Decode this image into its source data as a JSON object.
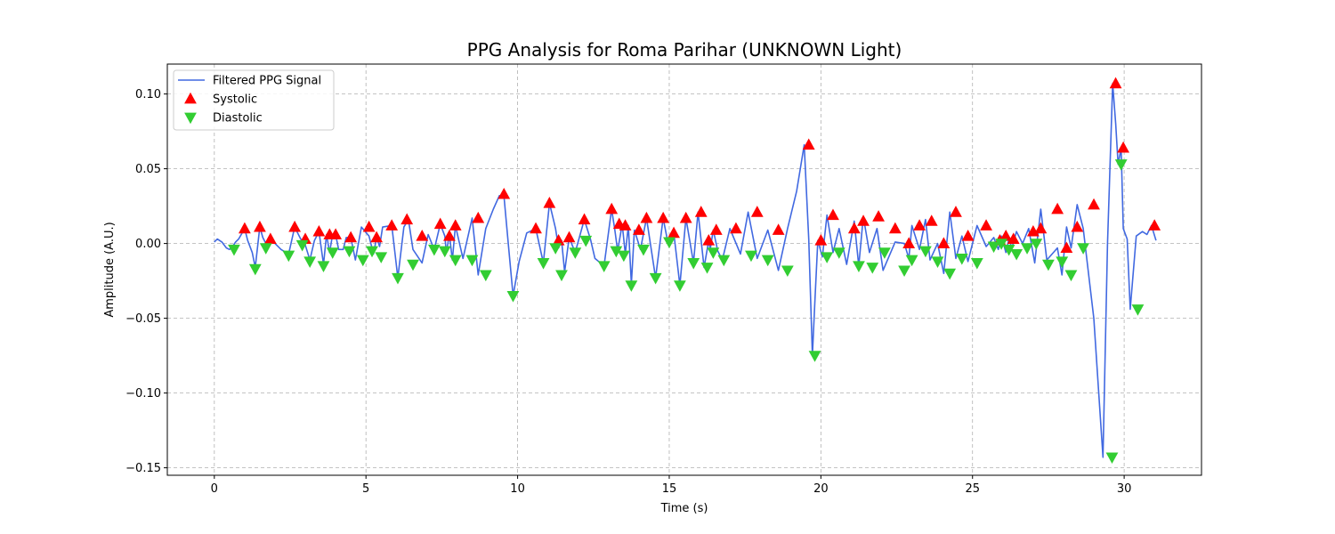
{
  "chart_data": {
    "type": "line",
    "title": "PPG Analysis for Roma Parihar (UNKNOWN Light)",
    "xlabel": "Time (s)",
    "ylabel": "Amplitude (A.U.)",
    "xlim": [
      -1.55,
      32.55
    ],
    "ylim": [
      -0.155,
      0.12
    ],
    "xticks": [
      0,
      5,
      10,
      15,
      20,
      25,
      30
    ],
    "xtick_labels": [
      "0",
      "5",
      "10",
      "15",
      "20",
      "25",
      "30"
    ],
    "yticks": [
      -0.15,
      -0.1,
      -0.05,
      0.0,
      0.05,
      0.1
    ],
    "ytick_labels": [
      "−0.15",
      "−0.10",
      "−0.05",
      "0.00",
      "0.05",
      "0.10"
    ],
    "grid": true,
    "legend_position": "top-left",
    "colors": {
      "signal": "#4169e1",
      "systolic": "#ff0000",
      "diastolic": "#32cd32"
    },
    "series": [
      {
        "name": "Filtered PPG Signal",
        "kind": "line",
        "x": [
          0.0,
          0.1,
          0.25,
          0.4,
          0.5,
          0.6,
          0.7,
          0.8,
          1.0,
          1.1,
          1.25,
          1.35,
          1.5,
          1.6,
          1.75,
          1.85,
          2.0,
          2.2,
          2.45,
          2.65,
          2.85,
          3.0,
          3.15,
          3.3,
          3.45,
          3.6,
          3.7,
          3.8,
          3.9,
          4.0,
          4.1,
          4.25,
          4.35,
          4.5,
          4.65,
          4.85,
          5.1,
          5.25,
          5.35,
          5.45,
          5.55,
          5.85,
          6.05,
          6.25,
          6.4,
          6.55,
          6.85,
          7.05,
          7.25,
          7.45,
          7.6,
          7.65,
          7.75,
          7.85,
          7.95,
          8.2,
          8.5,
          8.7,
          8.95,
          9.2,
          9.4,
          9.55,
          9.7,
          9.85,
          10.05,
          10.3,
          10.6,
          10.85,
          11.05,
          11.25,
          11.35,
          11.45,
          11.55,
          11.7,
          11.9,
          12.2,
          12.4,
          12.55,
          12.85,
          13.1,
          13.2,
          13.3,
          13.45,
          13.55,
          13.65,
          13.75,
          13.85,
          14.05,
          14.25,
          14.55,
          14.8,
          14.95,
          15.15,
          15.35,
          15.55,
          15.8,
          15.95,
          16.15,
          16.3,
          16.35,
          16.45,
          16.6,
          16.75,
          17.0,
          17.35,
          17.6,
          17.9,
          18.25,
          18.6,
          18.9,
          19.2,
          19.45,
          19.6,
          19.72,
          19.8,
          19.9,
          20.05,
          20.2,
          20.4,
          20.6,
          20.85,
          21.1,
          21.25,
          21.4,
          21.6,
          21.85,
          22.05,
          22.45,
          22.75,
          22.9,
          23.0,
          23.25,
          23.45,
          23.6,
          23.85,
          24.05,
          24.25,
          24.45,
          24.65,
          24.85,
          25.15,
          25.45,
          25.7,
          25.85,
          25.95,
          26.1,
          26.2,
          26.3,
          26.45,
          26.65,
          26.85,
          27.05,
          27.25,
          27.45,
          27.8,
          27.95,
          28.1,
          28.25,
          28.45,
          28.65,
          29.0,
          29.3,
          29.45,
          29.62,
          29.72,
          29.8,
          29.9,
          29.97,
          30.1,
          30.2,
          30.4,
          30.6,
          30.75,
          30.9,
          31.05
        ],
        "y": [
          0.001,
          0.003,
          0.001,
          -0.003,
          -0.004,
          -0.002,
          0.001,
          0.003,
          0.01,
          0.002,
          -0.006,
          -0.016,
          0.011,
          0.004,
          -0.002,
          0.002,
          0.0,
          -0.004,
          -0.007,
          0.011,
          0.003,
          -0.001,
          -0.011,
          0.002,
          0.008,
          -0.014,
          0.006,
          -0.006,
          0.006,
          0.006,
          -0.004,
          -0.004,
          0.004,
          0.004,
          -0.011,
          0.011,
          0.005,
          -0.007,
          0.004,
          -0.002,
          0.011,
          0.012,
          -0.023,
          0.011,
          0.016,
          -0.004,
          -0.013,
          0.006,
          -0.004,
          0.013,
          0.005,
          -0.006,
          0.006,
          -0.011,
          0.012,
          -0.01,
          0.017,
          -0.021,
          0.01,
          0.023,
          0.032,
          0.032,
          -0.002,
          -0.035,
          -0.012,
          0.007,
          0.01,
          -0.013,
          0.027,
          0.01,
          -0.003,
          0.002,
          -0.019,
          0.004,
          -0.006,
          0.016,
          0.003,
          -0.01,
          -0.015,
          0.023,
          0.01,
          -0.005,
          0.013,
          -0.007,
          0.012,
          -0.027,
          0.009,
          -0.004,
          0.017,
          -0.023,
          0.017,
          0.001,
          0.007,
          -0.028,
          0.017,
          -0.013,
          0.021,
          -0.016,
          0.002,
          -0.004,
          0.009,
          -0.005,
          -0.011,
          0.01,
          -0.007,
          0.021,
          -0.01,
          0.009,
          -0.018,
          0.01,
          0.035,
          0.066,
          0.003,
          -0.075,
          -0.04,
          0.002,
          -0.009,
          0.019,
          -0.006,
          0.01,
          -0.014,
          0.015,
          -0.015,
          0.018,
          -0.006,
          0.01,
          -0.018,
          0.001,
          0.0,
          -0.01,
          0.012,
          -0.004,
          0.016,
          -0.011,
          0.0,
          -0.02,
          0.021,
          -0.01,
          0.005,
          -0.012,
          0.012,
          -0.002,
          0.004,
          -0.004,
          0.005,
          -0.006,
          0.003,
          -0.003,
          0.008,
          0.0,
          0.01,
          -0.013,
          0.023,
          -0.011,
          -0.003,
          -0.021,
          0.011,
          -0.003,
          0.026,
          0.01,
          -0.05,
          -0.143,
          0.0,
          0.107,
          0.08,
          0.053,
          0.064,
          0.01,
          0.003,
          -0.044,
          0.005,
          0.008,
          0.006,
          0.012,
          0.002
        ]
      },
      {
        "name": "Systolic",
        "kind": "marker-up",
        "x": [
          1.0,
          1.5,
          1.85,
          2.65,
          3.0,
          3.45,
          3.8,
          4.0,
          4.5,
          5.1,
          5.35,
          5.85,
          6.35,
          6.85,
          7.45,
          7.75,
          7.95,
          8.7,
          9.55,
          10.6,
          11.05,
          11.35,
          11.7,
          12.2,
          13.1,
          13.35,
          13.55,
          14.0,
          14.25,
          14.8,
          15.15,
          15.55,
          16.05,
          16.3,
          16.55,
          17.2,
          17.9,
          18.6,
          19.6,
          20.0,
          20.4,
          21.1,
          21.4,
          21.9,
          22.45,
          22.9,
          23.25,
          23.65,
          24.05,
          24.45,
          24.85,
          25.45,
          25.9,
          26.1,
          26.35,
          27.0,
          27.25,
          27.8,
          28.1,
          28.45,
          29.0,
          29.72,
          29.97,
          31.0
        ],
        "y": [
          0.01,
          0.011,
          0.003,
          0.011,
          0.003,
          0.008,
          0.006,
          0.006,
          0.004,
          0.011,
          0.004,
          0.012,
          0.016,
          0.005,
          0.013,
          0.005,
          0.012,
          0.017,
          0.033,
          0.01,
          0.027,
          0.002,
          0.004,
          0.016,
          0.023,
          0.013,
          0.012,
          0.009,
          0.017,
          0.017,
          0.007,
          0.017,
          0.021,
          0.002,
          0.009,
          0.01,
          0.021,
          0.009,
          0.066,
          0.002,
          0.019,
          0.01,
          0.015,
          0.018,
          0.01,
          0.0,
          0.012,
          0.015,
          0.0,
          0.021,
          0.005,
          0.012,
          0.002,
          0.005,
          0.003,
          0.008,
          0.01,
          0.023,
          -0.003,
          0.011,
          0.026,
          0.107,
          0.064,
          0.012
        ]
      },
      {
        "name": "Diastolic",
        "kind": "marker-down",
        "x": [
          0.65,
          1.35,
          1.7,
          2.45,
          2.9,
          3.15,
          3.6,
          3.9,
          4.45,
          4.9,
          5.2,
          5.5,
          6.05,
          6.55,
          7.25,
          7.6,
          7.95,
          8.5,
          8.95,
          9.85,
          10.85,
          11.25,
          11.45,
          11.9,
          12.25,
          12.85,
          13.25,
          13.5,
          13.75,
          14.15,
          14.55,
          15.0,
          15.35,
          15.8,
          16.25,
          16.45,
          16.8,
          17.7,
          18.25,
          18.9,
          19.8,
          20.2,
          20.6,
          21.25,
          21.7,
          22.1,
          22.75,
          23.0,
          23.45,
          23.85,
          24.25,
          24.65,
          25.15,
          25.7,
          25.95,
          26.2,
          26.45,
          26.8,
          27.1,
          27.5,
          27.95,
          28.25,
          28.65,
          29.6,
          29.9,
          30.45
        ],
        "y": [
          -0.004,
          -0.017,
          -0.003,
          -0.008,
          -0.001,
          -0.012,
          -0.015,
          -0.006,
          -0.005,
          -0.011,
          -0.005,
          -0.009,
          -0.023,
          -0.014,
          -0.004,
          -0.005,
          -0.011,
          -0.011,
          -0.021,
          -0.035,
          -0.013,
          -0.003,
          -0.021,
          -0.006,
          0.002,
          -0.015,
          -0.005,
          -0.008,
          -0.028,
          -0.004,
          -0.023,
          0.001,
          -0.028,
          -0.013,
          -0.016,
          -0.006,
          -0.011,
          -0.008,
          -0.011,
          -0.018,
          -0.075,
          -0.009,
          -0.006,
          -0.015,
          -0.016,
          -0.006,
          -0.018,
          -0.011,
          -0.005,
          -0.012,
          -0.02,
          -0.01,
          -0.013,
          -0.002,
          0.0,
          -0.004,
          -0.007,
          -0.003,
          0.0,
          -0.014,
          -0.012,
          -0.021,
          -0.003,
          -0.143,
          0.053,
          -0.044
        ]
      }
    ],
    "legend": [
      {
        "label": "Filtered PPG Signal",
        "kind": "line"
      },
      {
        "label": "Systolic",
        "kind": "marker-up"
      },
      {
        "label": "Diastolic",
        "kind": "marker-down"
      }
    ]
  }
}
